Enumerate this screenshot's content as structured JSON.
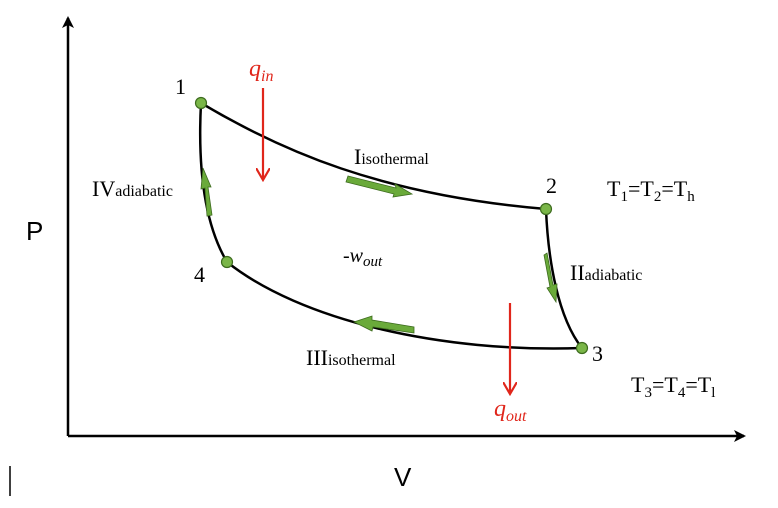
{
  "axes": {
    "y_label": "P",
    "x_label": "V"
  },
  "points": [
    {
      "label": "1"
    },
    {
      "label": "2"
    },
    {
      "label": "3"
    },
    {
      "label": "4"
    }
  ],
  "processes": [
    {
      "numeral": "I",
      "kind": "isothermal"
    },
    {
      "numeral": "II",
      "kind": "adiabatic"
    },
    {
      "numeral": "III",
      "kind": "isothermal"
    },
    {
      "numeral": "IV",
      "kind": "adiabatic"
    }
  ],
  "heat": {
    "in": {
      "symbol": "q",
      "subscript": "in"
    },
    "out": {
      "symbol": "q",
      "subscript": "out"
    }
  },
  "work": {
    "prefix": "-",
    "symbol": "w",
    "subscript": "out"
  },
  "temperature_relations": {
    "hot": {
      "a": "T",
      "a_sub": "1",
      "eq1": "=",
      "b": "T",
      "b_sub": "2",
      "eq2": "=",
      "c": "T",
      "c_sub": "h"
    },
    "cold": {
      "a": "T",
      "a_sub": "3",
      "eq1": "=",
      "b": "T",
      "b_sub": "4",
      "eq2": "=",
      "c": "T",
      "c_sub": "l"
    }
  },
  "colors": {
    "curve": "#000000",
    "point_fill": "#7ab648",
    "point_stroke": "#3d6b1e",
    "flow_arrow": "#6aaa3a",
    "heat_arrow": "#e0261b",
    "text": "#000000"
  }
}
